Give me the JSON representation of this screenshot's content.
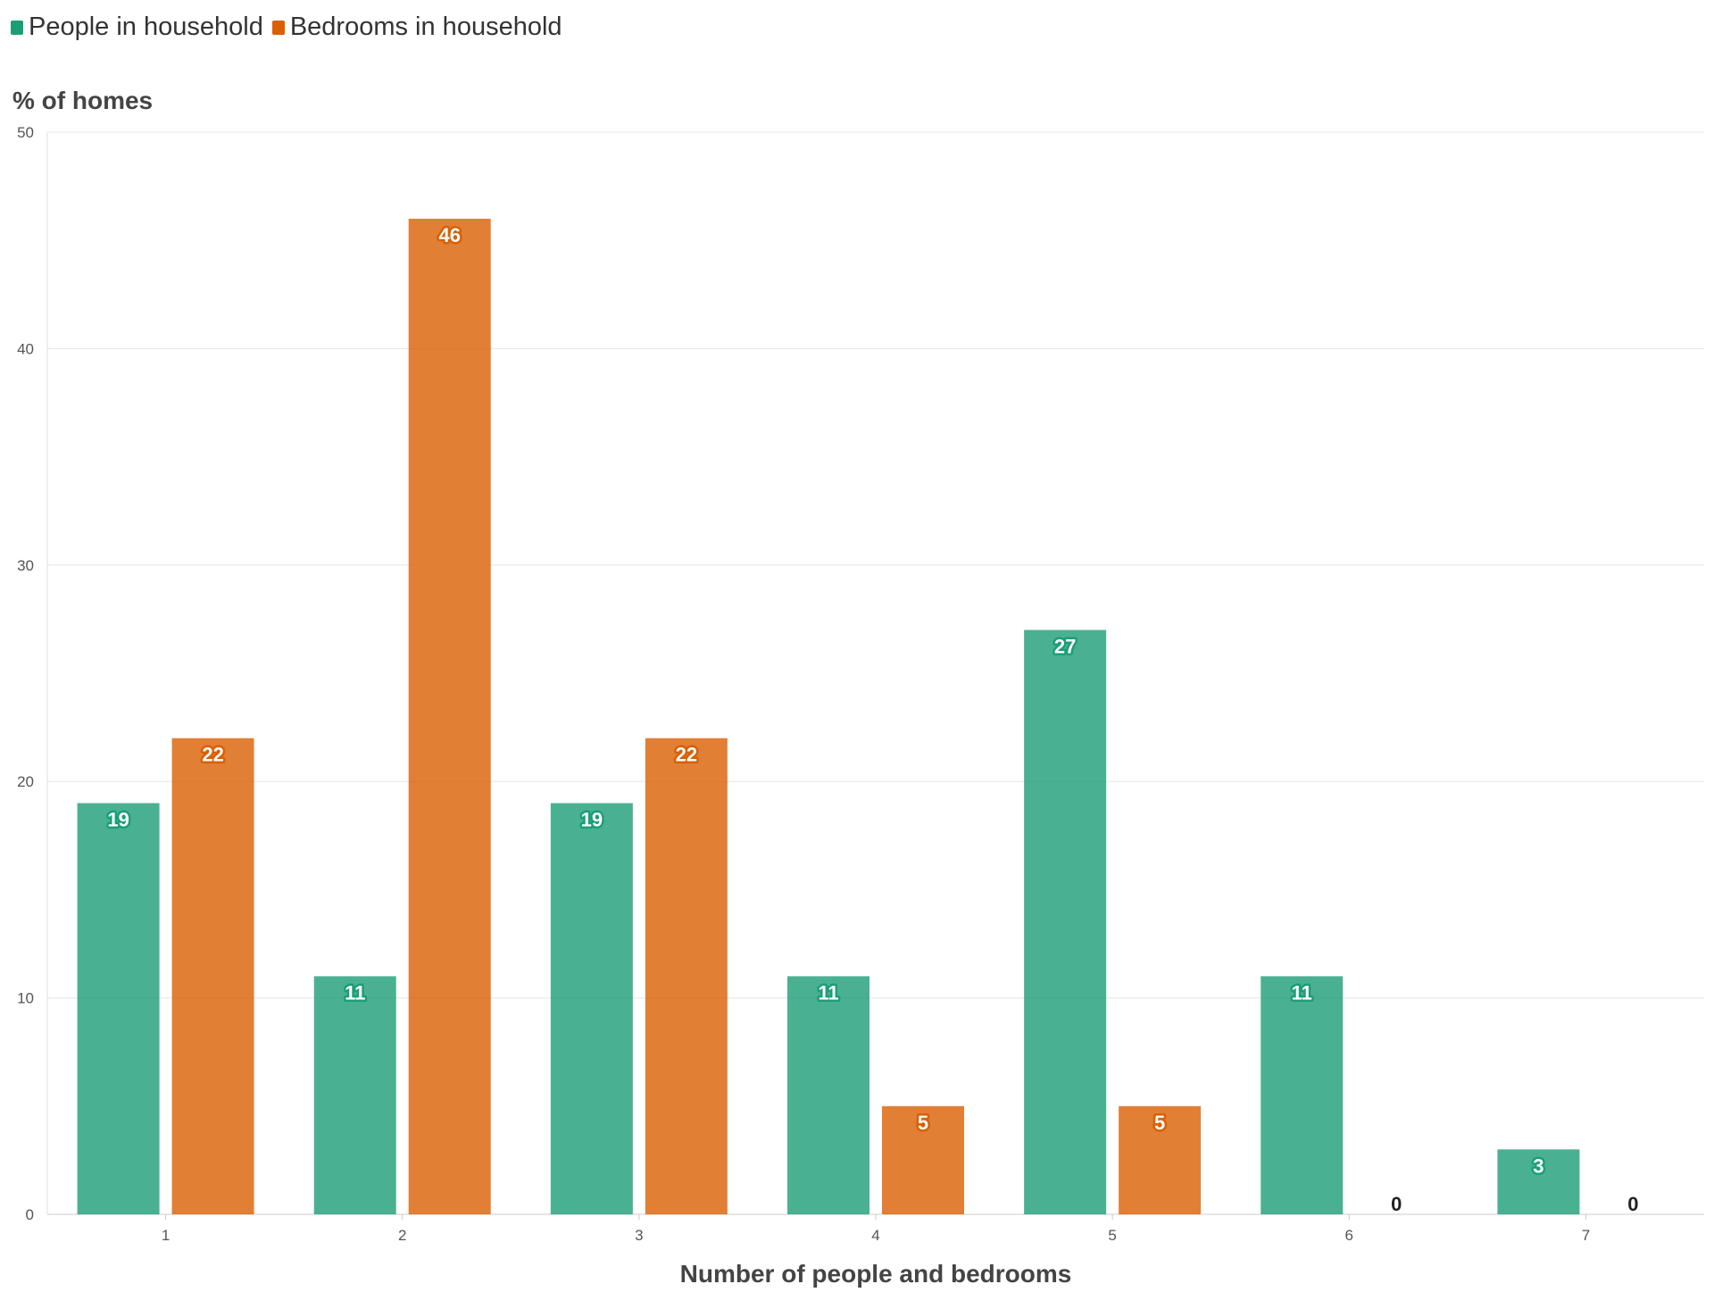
{
  "legend": [
    {
      "name": "People in household",
      "color": "#1b9e77"
    },
    {
      "name": "Bedrooms in household",
      "color": "#d95f02"
    }
  ],
  "chart_data": {
    "type": "bar",
    "title": "",
    "ylabel": "% of homes",
    "xlabel": "Number of people and bedrooms",
    "categories": [
      "1",
      "2",
      "3",
      "4",
      "5",
      "6",
      "7"
    ],
    "ylim": [
      0,
      50
    ],
    "yticks": [
      0,
      10,
      20,
      30,
      40,
      50
    ],
    "grid": true,
    "legend_position": "top-left",
    "series": [
      {
        "name": "People in household",
        "color": "#1b9e77",
        "values": [
          19,
          11,
          19,
          11,
          27,
          11,
          3
        ]
      },
      {
        "name": "Bedrooms in household",
        "color": "#d95f02",
        "values": [
          22,
          46,
          22,
          5,
          5,
          0,
          0
        ]
      }
    ]
  }
}
